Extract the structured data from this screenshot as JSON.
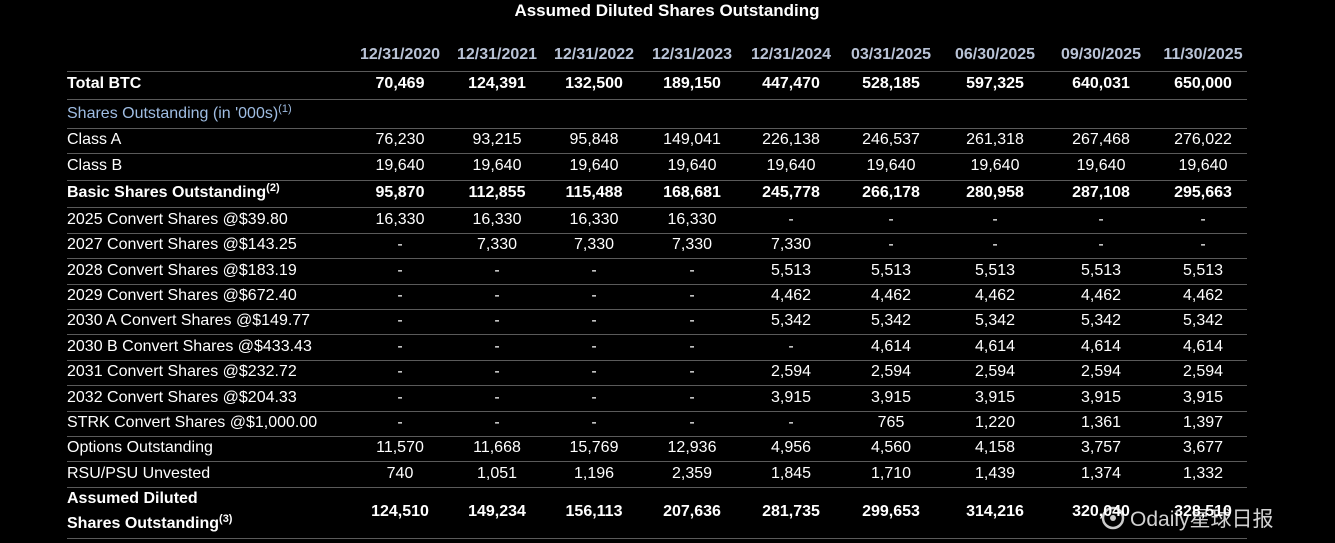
{
  "title": "Assumed Diluted Shares Outstanding",
  "table": {
    "columns": [
      "12/31/2020",
      "12/31/2021",
      "12/31/2022",
      "12/31/2023",
      "12/31/2024",
      "03/31/2025",
      "06/30/2025",
      "09/30/2025",
      "11/30/2025"
    ],
    "rows": [
      {
        "label": "Total BTC",
        "bold": true,
        "values": [
          "70,469",
          "124,391",
          "132,500",
          "189,150",
          "447,470",
          "528,185",
          "597,325",
          "640,031",
          "650,000"
        ]
      },
      {
        "label": "Shares Outstanding (in '000s)",
        "note": "(1)",
        "section": true
      },
      {
        "label": "Class A",
        "values": [
          "76,230",
          "93,215",
          "95,848",
          "149,041",
          "226,138",
          "246,537",
          "261,318",
          "267,468",
          "276,022"
        ]
      },
      {
        "label": "Class B",
        "values": [
          "19,640",
          "19,640",
          "19,640",
          "19,640",
          "19,640",
          "19,640",
          "19,640",
          "19,640",
          "19,640"
        ]
      },
      {
        "label": "Basic Shares Outstanding",
        "note": "(2)",
        "bold": true,
        "values": [
          "95,870",
          "112,855",
          "115,488",
          "168,681",
          "245,778",
          "266,178",
          "280,958",
          "287,108",
          "295,663"
        ]
      },
      {
        "label": "2025 Convert Shares @$39.80",
        "values": [
          "16,330",
          "16,330",
          "16,330",
          "16,330",
          "-",
          "-",
          "-",
          "-",
          "-"
        ]
      },
      {
        "label": "2027 Convert Shares @$143.25",
        "values": [
          "-",
          "7,330",
          "7,330",
          "7,330",
          "7,330",
          "-",
          "-",
          "-",
          "-"
        ]
      },
      {
        "label": "2028 Convert Shares @$183.19",
        "values": [
          "-",
          "-",
          "-",
          "-",
          "5,513",
          "5,513",
          "5,513",
          "5,513",
          "5,513"
        ]
      },
      {
        "label": "2029 Convert Shares @$672.40",
        "values": [
          "-",
          "-",
          "-",
          "-",
          "4,462",
          "4,462",
          "4,462",
          "4,462",
          "4,462"
        ]
      },
      {
        "label": "2030 A Convert Shares @$149.77",
        "values": [
          "-",
          "-",
          "-",
          "-",
          "5,342",
          "5,342",
          "5,342",
          "5,342",
          "5,342"
        ]
      },
      {
        "label": "2030 B Convert Shares @$433.43",
        "values": [
          "-",
          "-",
          "-",
          "-",
          "-",
          "4,614",
          "4,614",
          "4,614",
          "4,614"
        ]
      },
      {
        "label": "2031 Convert Shares @$232.72",
        "values": [
          "-",
          "-",
          "-",
          "-",
          "2,594",
          "2,594",
          "2,594",
          "2,594",
          "2,594"
        ]
      },
      {
        "label": "2032 Convert Shares @$204.33",
        "values": [
          "-",
          "-",
          "-",
          "-",
          "3,915",
          "3,915",
          "3,915",
          "3,915",
          "3,915"
        ]
      },
      {
        "label": "STRK Convert Shares @$1,000.00",
        "values": [
          "-",
          "-",
          "-",
          "-",
          "-",
          "765",
          "1,220",
          "1,361",
          "1,397"
        ]
      },
      {
        "label": "Options Outstanding",
        "values": [
          "11,570",
          "11,668",
          "15,769",
          "12,936",
          "4,956",
          "4,560",
          "4,158",
          "3,757",
          "3,677"
        ]
      },
      {
        "label": "RSU/PSU Unvested",
        "values": [
          "740",
          "1,051",
          "1,196",
          "2,359",
          "1,845",
          "1,710",
          "1,439",
          "1,374",
          "1,332"
        ]
      },
      {
        "label": [
          "Assumed Diluted",
          "Shares Outstanding"
        ],
        "note": "(3)",
        "bold": true,
        "values": [
          "124,510",
          "149,234",
          "156,113",
          "207,636",
          "281,735",
          "299,653",
          "314,216",
          "320,040",
          "328,510"
        ]
      }
    ]
  },
  "watermark": "Odaily星球日报"
}
